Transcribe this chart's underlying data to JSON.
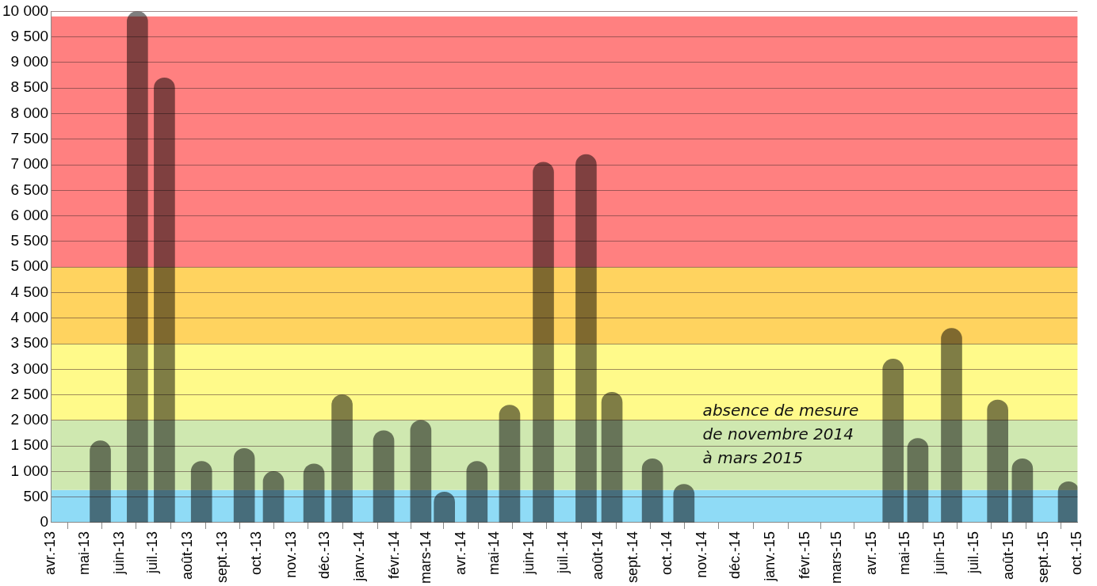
{
  "chart_data": {
    "type": "bar",
    "x": [
      "2013-05-15",
      "2013-06-17",
      "2013-07-11",
      "2013-08-13",
      "2013-09-20",
      "2013-10-16",
      "2013-11-21",
      "2013-12-16",
      "2014-01-22",
      "2014-02-24",
      "2014-03-17",
      "2014-04-15",
      "2014-05-14",
      "2014-06-13",
      "2014-07-21",
      "2014-08-13",
      "2014-09-18",
      "2014-10-16",
      "2015-04-20",
      "2015-05-12",
      "2015-06-11",
      "2015-07-22",
      "2015-08-13",
      "2015-09-23"
    ],
    "series": [
      {
        "color": "#000000",
        "values": [
          1600,
          10000,
          8700,
          1200,
          1450,
          1000,
          1150,
          2500,
          1800,
          2000,
          600,
          1200,
          2300,
          7050,
          7200,
          2550,
          1250,
          750,
          3200,
          1650,
          3800,
          2400,
          1250,
          800
        ]
      }
    ],
    "xlim": [
      "2013-04-01",
      "2015-10-01"
    ],
    "xticks": [
      {
        "value": "2013-04-01",
        "label": "avr.-13"
      },
      {
        "value": "2013-05-01",
        "label": "mai-13"
      },
      {
        "value": "2013-06-01",
        "label": "juin-13"
      },
      {
        "value": "2013-07-01",
        "label": "juil.-13"
      },
      {
        "value": "2013-08-01",
        "label": "août-13"
      },
      {
        "value": "2013-09-01",
        "label": "sept.-13"
      },
      {
        "value": "2013-10-01",
        "label": "oct.-13"
      },
      {
        "value": "2013-11-01",
        "label": "nov.-13"
      },
      {
        "value": "2013-12-01",
        "label": "déc.-13"
      },
      {
        "value": "2014-01-01",
        "label": "janv.-14"
      },
      {
        "value": "2014-02-01",
        "label": "févr.-14"
      },
      {
        "value": "2014-03-01",
        "label": "mars-14"
      },
      {
        "value": "2014-04-01",
        "label": "avr.-14"
      },
      {
        "value": "2014-05-01",
        "label": "mai-14"
      },
      {
        "value": "2014-06-01",
        "label": "juin-14"
      },
      {
        "value": "2014-07-01",
        "label": "juil.-14"
      },
      {
        "value": "2014-08-01",
        "label": "août-14"
      },
      {
        "value": "2014-09-01",
        "label": "sept.-14"
      },
      {
        "value": "2014-10-01",
        "label": "oct.-14"
      },
      {
        "value": "2014-11-01",
        "label": "nov.-14"
      },
      {
        "value": "2014-12-01",
        "label": "déc.-14"
      },
      {
        "value": "2015-01-01",
        "label": "janv.-15"
      },
      {
        "value": "2015-02-01",
        "label": "févr.-15"
      },
      {
        "value": "2015-03-01",
        "label": "mars-15"
      },
      {
        "value": "2015-04-01",
        "label": "avr.-15"
      },
      {
        "value": "2015-05-01",
        "label": "mai-15"
      },
      {
        "value": "2015-06-01",
        "label": "juin-15"
      },
      {
        "value": "2015-07-01",
        "label": "juil.-15"
      },
      {
        "value": "2015-08-01",
        "label": "août-15"
      },
      {
        "value": "2015-09-01",
        "label": "sept.-15"
      },
      {
        "value": "2015-10-01",
        "label": "oct.-15"
      }
    ],
    "ylim": [
      0,
      10000
    ],
    "yticks": [
      0,
      500,
      {
        "value": 1000,
        "label": "1 000"
      },
      {
        "value": 1500,
        "label": "1 500"
      },
      {
        "value": 2000,
        "label": "2 000"
      },
      {
        "value": 2500,
        "label": "2 500"
      },
      {
        "value": 3000,
        "label": "3 000"
      },
      {
        "value": 3500,
        "label": "3 500"
      },
      {
        "value": 4000,
        "label": "4 000"
      },
      {
        "value": 4500,
        "label": "4 500"
      },
      {
        "value": 5000,
        "label": "5 000"
      },
      {
        "value": 5500,
        "label": "5 500"
      },
      {
        "value": 6000,
        "label": "6 000"
      },
      {
        "value": 6500,
        "label": "6 500"
      },
      {
        "value": 7000,
        "label": "7 000"
      },
      {
        "value": 7500,
        "label": "7 500"
      },
      {
        "value": 8000,
        "label": "8 000"
      },
      {
        "value": 8500,
        "label": "8 500"
      },
      {
        "value": 9000,
        "label": "9 000"
      },
      {
        "value": 9500,
        "label": "9 500"
      },
      {
        "value": 10000,
        "label": "10 000"
      }
    ],
    "bands": [
      {
        "axis": "y",
        "from": 0,
        "to": 640,
        "color": "#8fdbf6"
      },
      {
        "axis": "y",
        "from": 640,
        "to": 2000,
        "color": "#cfe8b0"
      },
      {
        "axis": "y",
        "from": 2000,
        "to": 3500,
        "color": "#fffa8a"
      },
      {
        "axis": "y",
        "from": 3500,
        "to": 5000,
        "color": "#ffd35f"
      },
      {
        "axis": "y",
        "from": 5000,
        "to": 9900,
        "color": "#ff8080"
      }
    ],
    "annotations": [
      "absence de mesure\nde novembre 2014\nà mars 2015"
    ],
    "grid": "y",
    "legend": false
  }
}
